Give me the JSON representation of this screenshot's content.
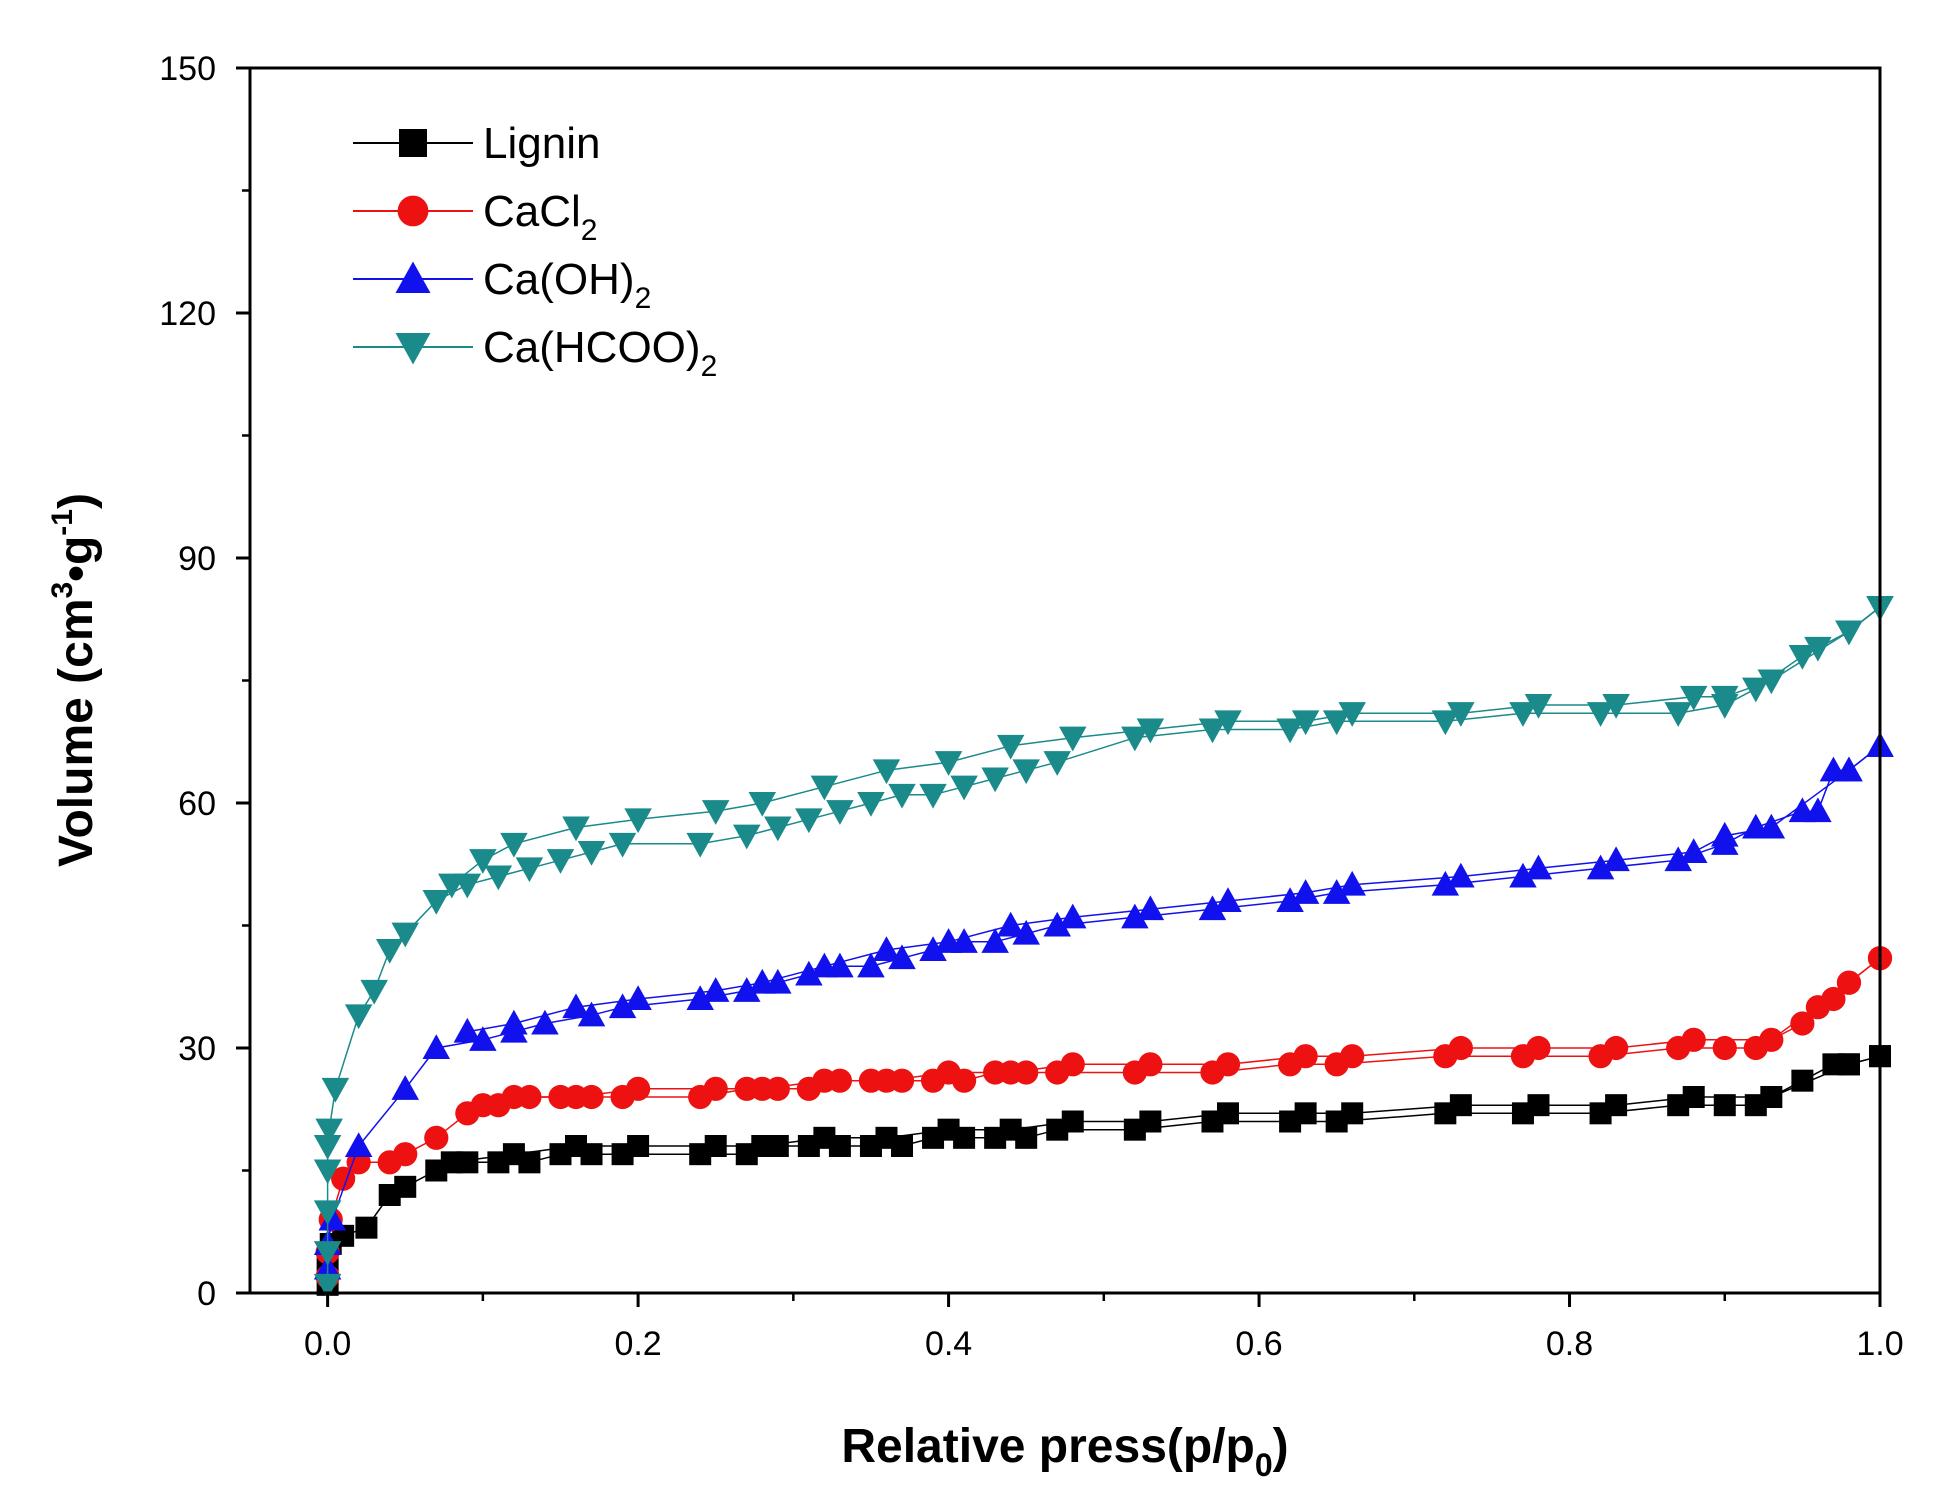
{
  "chart_data": {
    "type": "line",
    "title": "",
    "xlabel": "Relative press(p/p0)",
    "xlabel_parts": {
      "main": "Relative press(p/p",
      "sub": "0",
      "tail": ")"
    },
    "ylabel": "Volume (cm3•g-1)",
    "ylabel_parts": {
      "a": "Volume (cm",
      "sup1": "3",
      "b": "•g",
      "sup2": "-1",
      "c": ")"
    },
    "xlim": [
      -0.05,
      1.0
    ],
    "ylim": [
      0,
      150
    ],
    "xticks": [
      0.0,
      0.2,
      0.4,
      0.6,
      0.8,
      1.0
    ],
    "xtick_labels": [
      "0.0",
      "0.2",
      "0.4",
      "0.6",
      "0.8",
      "1.0"
    ],
    "yticks": [
      0,
      30,
      60,
      90,
      120,
      150
    ],
    "ytick_labels": [
      "0",
      "30",
      "60",
      "90",
      "120",
      "150"
    ],
    "legend_position": "top-left",
    "series": [
      {
        "name": "Lignin",
        "name_main": "Lignin",
        "name_sub": "",
        "color": "#000000",
        "marker": "square",
        "adsorption": [
          [
            0.0,
            1
          ],
          [
            0.0,
            3
          ],
          [
            0.002,
            6
          ],
          [
            0.01,
            7
          ],
          [
            0.025,
            8
          ],
          [
            0.04,
            12
          ],
          [
            0.05,
            13
          ],
          [
            0.07,
            15
          ],
          [
            0.09,
            16
          ],
          [
            0.11,
            16
          ],
          [
            0.13,
            16
          ],
          [
            0.15,
            17
          ],
          [
            0.17,
            17
          ],
          [
            0.19,
            17
          ],
          [
            0.24,
            17
          ],
          [
            0.27,
            17
          ],
          [
            0.29,
            18
          ],
          [
            0.31,
            18
          ],
          [
            0.33,
            18
          ],
          [
            0.35,
            18
          ],
          [
            0.37,
            18
          ],
          [
            0.39,
            19
          ],
          [
            0.41,
            19
          ],
          [
            0.43,
            19
          ],
          [
            0.45,
            19
          ],
          [
            0.47,
            20
          ],
          [
            0.52,
            20
          ],
          [
            0.57,
            21
          ],
          [
            0.62,
            21
          ],
          [
            0.65,
            21
          ],
          [
            0.72,
            22
          ],
          [
            0.77,
            22
          ],
          [
            0.82,
            22
          ],
          [
            0.87,
            23
          ],
          [
            0.9,
            23
          ],
          [
            0.92,
            23
          ],
          [
            0.95,
            26
          ],
          [
            0.97,
            28
          ],
          [
            0.98,
            28
          ],
          [
            1.0,
            29
          ]
        ],
        "desorption": [
          [
            1.0,
            29
          ],
          [
            0.98,
            28
          ],
          [
            0.93,
            24
          ],
          [
            0.88,
            24
          ],
          [
            0.83,
            23
          ],
          [
            0.78,
            23
          ],
          [
            0.73,
            23
          ],
          [
            0.66,
            22
          ],
          [
            0.63,
            22
          ],
          [
            0.58,
            22
          ],
          [
            0.53,
            21
          ],
          [
            0.48,
            21
          ],
          [
            0.44,
            20
          ],
          [
            0.4,
            20
          ],
          [
            0.36,
            19
          ],
          [
            0.32,
            19
          ],
          [
            0.28,
            18
          ],
          [
            0.25,
            18
          ],
          [
            0.2,
            18
          ],
          [
            0.16,
            18
          ],
          [
            0.12,
            17
          ],
          [
            0.08,
            16
          ]
        ]
      },
      {
        "name": "CaCl2",
        "name_main": "CaCl",
        "name_sub": "2",
        "color": "#ee1111",
        "marker": "circle",
        "adsorption": [
          [
            0.0,
            2
          ],
          [
            0.0,
            5
          ],
          [
            0.002,
            9
          ],
          [
            0.01,
            14
          ],
          [
            0.02,
            16
          ],
          [
            0.04,
            16
          ],
          [
            0.05,
            17
          ],
          [
            0.07,
            19
          ],
          [
            0.09,
            22
          ],
          [
            0.11,
            23
          ],
          [
            0.13,
            24
          ],
          [
            0.15,
            24
          ],
          [
            0.17,
            24
          ],
          [
            0.19,
            24
          ],
          [
            0.24,
            24
          ],
          [
            0.27,
            25
          ],
          [
            0.29,
            25
          ],
          [
            0.31,
            25
          ],
          [
            0.33,
            26
          ],
          [
            0.35,
            26
          ],
          [
            0.37,
            26
          ],
          [
            0.39,
            26
          ],
          [
            0.41,
            26
          ],
          [
            0.43,
            27
          ],
          [
            0.45,
            27
          ],
          [
            0.47,
            27
          ],
          [
            0.52,
            27
          ],
          [
            0.57,
            27
          ],
          [
            0.62,
            28
          ],
          [
            0.65,
            28
          ],
          [
            0.72,
            29
          ],
          [
            0.77,
            29
          ],
          [
            0.82,
            29
          ],
          [
            0.87,
            30
          ],
          [
            0.9,
            30
          ],
          [
            0.92,
            30
          ],
          [
            0.95,
            33
          ],
          [
            0.96,
            35
          ],
          [
            0.97,
            36
          ],
          [
            0.98,
            38
          ],
          [
            1.0,
            41
          ]
        ],
        "desorption": [
          [
            1.0,
            41
          ],
          [
            0.98,
            38
          ],
          [
            0.93,
            31
          ],
          [
            0.88,
            31
          ],
          [
            0.83,
            30
          ],
          [
            0.78,
            30
          ],
          [
            0.73,
            30
          ],
          [
            0.66,
            29
          ],
          [
            0.63,
            29
          ],
          [
            0.58,
            28
          ],
          [
            0.53,
            28
          ],
          [
            0.48,
            28
          ],
          [
            0.44,
            27
          ],
          [
            0.4,
            27
          ],
          [
            0.36,
            26
          ],
          [
            0.32,
            26
          ],
          [
            0.28,
            25
          ],
          [
            0.25,
            25
          ],
          [
            0.2,
            25
          ],
          [
            0.16,
            24
          ],
          [
            0.12,
            24
          ],
          [
            0.1,
            23
          ]
        ]
      },
      {
        "name": "Ca(OH)2",
        "name_main": "Ca(OH)",
        "name_sub": "2",
        "color": "#1111ee",
        "marker": "triangle-up",
        "adsorption": [
          [
            0.0,
            3
          ],
          [
            0.0,
            6
          ],
          [
            0.003,
            9
          ],
          [
            0.02,
            18
          ],
          [
            0.05,
            25
          ],
          [
            0.07,
            30
          ],
          [
            0.1,
            31
          ],
          [
            0.12,
            32
          ],
          [
            0.14,
            33
          ],
          [
            0.17,
            34
          ],
          [
            0.19,
            35
          ],
          [
            0.24,
            36
          ],
          [
            0.27,
            37
          ],
          [
            0.29,
            38
          ],
          [
            0.31,
            39
          ],
          [
            0.33,
            40
          ],
          [
            0.35,
            40
          ],
          [
            0.37,
            41
          ],
          [
            0.39,
            42
          ],
          [
            0.41,
            43
          ],
          [
            0.43,
            43
          ],
          [
            0.45,
            44
          ],
          [
            0.47,
            45
          ],
          [
            0.52,
            46
          ],
          [
            0.57,
            47
          ],
          [
            0.62,
            48
          ],
          [
            0.65,
            49
          ],
          [
            0.72,
            50
          ],
          [
            0.77,
            51
          ],
          [
            0.82,
            52
          ],
          [
            0.87,
            53
          ],
          [
            0.9,
            55
          ],
          [
            0.92,
            57
          ],
          [
            0.95,
            59
          ],
          [
            0.96,
            59
          ],
          [
            0.97,
            64
          ],
          [
            0.98,
            64
          ],
          [
            1.0,
            67
          ]
        ],
        "desorption": [
          [
            1.0,
            67
          ],
          [
            0.98,
            64
          ],
          [
            0.93,
            57
          ],
          [
            0.9,
            56
          ],
          [
            0.88,
            54
          ],
          [
            0.83,
            53
          ],
          [
            0.78,
            52
          ],
          [
            0.73,
            51
          ],
          [
            0.66,
            50
          ],
          [
            0.63,
            49
          ],
          [
            0.58,
            48
          ],
          [
            0.53,
            47
          ],
          [
            0.48,
            46
          ],
          [
            0.44,
            45
          ],
          [
            0.4,
            43
          ],
          [
            0.36,
            42
          ],
          [
            0.32,
            40
          ],
          [
            0.28,
            38
          ],
          [
            0.25,
            37
          ],
          [
            0.2,
            36
          ],
          [
            0.16,
            35
          ],
          [
            0.12,
            33
          ],
          [
            0.09,
            32
          ]
        ]
      },
      {
        "name": "Ca(HCOO)2",
        "name_main": "Ca(HCOO)",
        "name_sub": "2",
        "color": "#1a8a8a",
        "marker": "triangle-down",
        "adsorption": [
          [
            0.0,
            1
          ],
          [
            0.0,
            5
          ],
          [
            0.0,
            10
          ],
          [
            0.0,
            15
          ],
          [
            0.0,
            18
          ],
          [
            0.001,
            20
          ],
          [
            0.005,
            25
          ],
          [
            0.02,
            34
          ],
          [
            0.03,
            37
          ],
          [
            0.04,
            42
          ],
          [
            0.05,
            44
          ],
          [
            0.07,
            48
          ],
          [
            0.09,
            50
          ],
          [
            0.11,
            51
          ],
          [
            0.13,
            52
          ],
          [
            0.15,
            53
          ],
          [
            0.17,
            54
          ],
          [
            0.19,
            55
          ],
          [
            0.24,
            55
          ],
          [
            0.27,
            56
          ],
          [
            0.29,
            57
          ],
          [
            0.31,
            58
          ],
          [
            0.33,
            59
          ],
          [
            0.35,
            60
          ],
          [
            0.37,
            61
          ],
          [
            0.39,
            61
          ],
          [
            0.41,
            62
          ],
          [
            0.43,
            63
          ],
          [
            0.45,
            64
          ],
          [
            0.47,
            65
          ],
          [
            0.52,
            68
          ],
          [
            0.57,
            69
          ],
          [
            0.62,
            69
          ],
          [
            0.65,
            70
          ],
          [
            0.72,
            70
          ],
          [
            0.77,
            71
          ],
          [
            0.82,
            71
          ],
          [
            0.87,
            71
          ],
          [
            0.9,
            72
          ],
          [
            0.92,
            74
          ],
          [
            0.95,
            78
          ],
          [
            0.96,
            79
          ],
          [
            0.98,
            81
          ],
          [
            1.0,
            84
          ]
        ],
        "desorption": [
          [
            1.0,
            84
          ],
          [
            0.98,
            81
          ],
          [
            0.93,
            75
          ],
          [
            0.9,
            73
          ],
          [
            0.88,
            73
          ],
          [
            0.83,
            72
          ],
          [
            0.78,
            72
          ],
          [
            0.73,
            71
          ],
          [
            0.66,
            71
          ],
          [
            0.63,
            70
          ],
          [
            0.58,
            70
          ],
          [
            0.53,
            69
          ],
          [
            0.48,
            68
          ],
          [
            0.44,
            67
          ],
          [
            0.4,
            65
          ],
          [
            0.36,
            64
          ],
          [
            0.32,
            62
          ],
          [
            0.28,
            60
          ],
          [
            0.25,
            59
          ],
          [
            0.2,
            58
          ],
          [
            0.16,
            57
          ],
          [
            0.12,
            55
          ],
          [
            0.1,
            53
          ],
          [
            0.08,
            50
          ]
        ]
      }
    ]
  }
}
